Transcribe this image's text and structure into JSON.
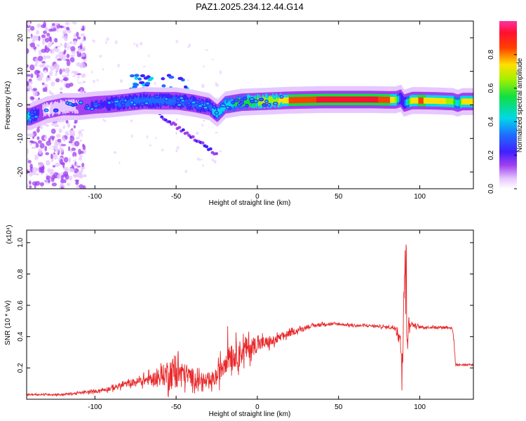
{
  "figure": {
    "title": "PAZ1.2025.234.12.44.G14"
  },
  "colors": {
    "ridge_low": "#7b20e0",
    "ridge_mid": "#12d0c8",
    "ridge_high": "#ff2a2a",
    "snr_line": "#e8282a",
    "axis": "#000000"
  },
  "chart_data": [
    {
      "type": "heatmap",
      "xlabel": "Height of straight line (km)",
      "ylabel": "Frequency (Hz)",
      "xlim": [
        -142,
        133
      ],
      "ylim": [
        -25,
        25
      ],
      "xticks": [
        -100,
        -50,
        0,
        50,
        100
      ],
      "yticks": [
        -20,
        -10,
        0,
        10,
        20
      ],
      "grid": false,
      "colorbar": {
        "label": "Normalized spectral amplitude",
        "range": [
          0,
          1
        ],
        "ticks": [
          "0.0",
          "0.2",
          "0.4",
          "0.6",
          "0.8"
        ],
        "colormap": "rainbow (white-purple-blue-cyan-green-yellow-red-magenta)"
      },
      "ridge": {
        "description": "dominant spectral line vs height",
        "x": [
          -140,
          -130,
          -120,
          -110,
          -100,
          -90,
          -80,
          -70,
          -60,
          -50,
          -40,
          -30,
          -25,
          -20,
          -10,
          0,
          10,
          20,
          30,
          40,
          50,
          60,
          70,
          80,
          85,
          88,
          90,
          95,
          100,
          110,
          120,
          123,
          126,
          133
        ],
        "y": [
          -3.5,
          -1.5,
          -0.5,
          -0.5,
          0,
          0.3,
          0.8,
          1.3,
          1.2,
          1.2,
          0.5,
          -0.5,
          -2.5,
          0,
          0.8,
          1,
          1.2,
          1.4,
          1.5,
          1.6,
          1.6,
          1.6,
          1.6,
          1.5,
          1.5,
          2.0,
          0.5,
          1.3,
          1.3,
          1.2,
          1.0,
          0.5,
          1.0,
          1.0
        ],
        "amplitude": [
          0.45,
          0.05,
          0.1,
          0.15,
          0.25,
          0.3,
          0.4,
          0.4,
          0.35,
          0.35,
          0.35,
          0.4,
          0.45,
          0.5,
          0.6,
          0.65,
          0.7,
          0.85,
          0.9,
          0.95,
          0.95,
          0.95,
          0.95,
          0.9,
          0.7,
          0.3,
          0.3,
          0.8,
          0.85,
          0.8,
          0.7,
          0.45,
          0.75,
          0.75
        ]
      },
      "noise_region": {
        "x_range": [
          -142,
          -110
        ],
        "description": "scattered low-amplitude purple blobs across full frequency range"
      }
    },
    {
      "type": "line",
      "xlabel": "Height of straight line (km)",
      "ylabel": "SNR (10 * v/v)",
      "y_scale_label": "(x10⁴)",
      "xlim": [
        -142,
        133
      ],
      "ylim": [
        0,
        1.08
      ],
      "xticks": [
        -100,
        -50,
        0,
        50,
        100
      ],
      "yticks": [
        "0.2",
        "0.4",
        "0.6",
        "0.8",
        "1.0"
      ],
      "grid": false,
      "series": [
        {
          "x": [
            -142,
            -130,
            -120,
            -110,
            -100,
            -90,
            -80,
            -70,
            -60,
            -55,
            -50,
            -45,
            -40,
            -35,
            -30,
            -25,
            -20,
            -18,
            -15,
            -10,
            -5,
            0,
            5,
            10,
            15,
            20,
            25,
            30,
            35,
            40,
            50,
            60,
            70,
            80,
            85,
            88,
            89,
            90,
            91,
            92,
            93,
            95,
            100,
            110,
            118,
            120,
            121,
            122,
            125,
            133
          ],
          "values": [
            0.03,
            0.03,
            0.03,
            0.04,
            0.05,
            0.07,
            0.1,
            0.12,
            0.14,
            0.17,
            0.18,
            0.16,
            0.14,
            0.12,
            0.1,
            0.14,
            0.25,
            0.3,
            0.28,
            0.3,
            0.33,
            0.35,
            0.36,
            0.37,
            0.4,
            0.42,
            0.44,
            0.46,
            0.47,
            0.48,
            0.48,
            0.47,
            0.47,
            0.46,
            0.46,
            0.4,
            0.1,
            0.55,
            0.85,
            0.3,
            0.5,
            0.48,
            0.46,
            0.46,
            0.46,
            0.45,
            0.38,
            0.22,
            0.22,
            0.22
          ],
          "fluctuation": [
            0.005,
            0.005,
            0.006,
            0.008,
            0.01,
            0.015,
            0.02,
            0.03,
            0.05,
            0.09,
            0.1,
            0.07,
            0.06,
            0.04,
            0.04,
            0.05,
            0.1,
            0.1,
            0.08,
            0.08,
            0.07,
            0.05,
            0.04,
            0.03,
            0.025,
            0.02,
            0.015,
            0.01,
            0.01,
            0.01,
            0.008,
            0.008,
            0.008,
            0.008,
            0.02,
            0.05,
            0.05,
            0.1,
            0.2,
            0.1,
            0.05,
            0.02,
            0.008,
            0.008,
            0.008,
            0.01,
            0.02,
            0.008,
            0.005,
            0.005
          ]
        }
      ]
    }
  ]
}
